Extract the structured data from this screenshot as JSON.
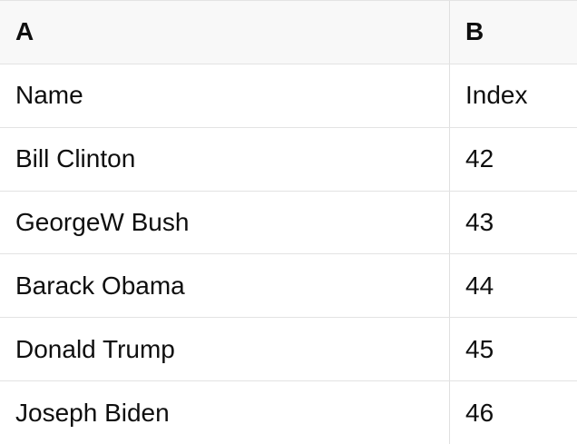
{
  "table": {
    "header": {
      "a": "A",
      "b": "B"
    },
    "rows": [
      {
        "a": "Name",
        "b": "Index"
      },
      {
        "a": "Bill Clinton",
        "b": "42"
      },
      {
        "a": "GeorgeW Bush",
        "b": "43"
      },
      {
        "a": "Barack Obama",
        "b": "44"
      },
      {
        "a": "Donald Trump",
        "b": "45"
      },
      {
        "a": "Joseph Biden",
        "b": "46"
      }
    ]
  },
  "colors": {
    "header_bg": "#f8f8f8",
    "border": "#e3e3e3",
    "col_border": "#e0e0e0",
    "text": "#0f0f0f"
  }
}
